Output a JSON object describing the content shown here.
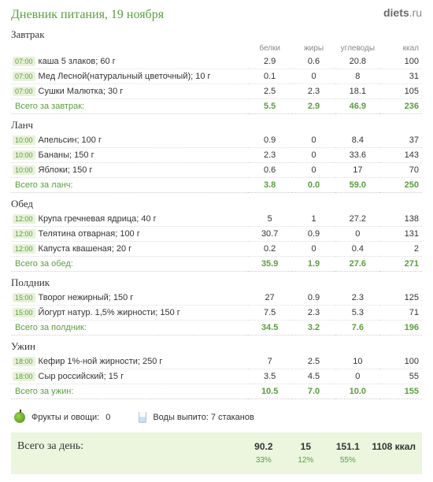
{
  "logo_bold": "diets",
  "logo_suffix": ".ru",
  "title": "Дневник питания, 19 ноября",
  "columns": {
    "protein": "белки",
    "fat": "жиры",
    "carbs": "углеводы",
    "kcal": "ккал"
  },
  "meals": [
    {
      "name": "Завтрак",
      "show_header": true,
      "total_label": "Всего за завтрак:",
      "items": [
        {
          "time": "07:00",
          "food": "каша 5 злаков; 60 г",
          "p": "2.9",
          "f": "0.6",
          "c": "20.8",
          "k": "100"
        },
        {
          "time": "07:00",
          "food": "Мед Лесной(натуральный цветочный); 10 г",
          "p": "0.1",
          "f": "0",
          "c": "8",
          "k": "31"
        },
        {
          "time": "07:00",
          "food": "Сушки Малютка; 30 г",
          "p": "2.5",
          "f": "2.3",
          "c": "18.1",
          "k": "105"
        }
      ],
      "total": {
        "p": "5.5",
        "f": "2.9",
        "c": "46.9",
        "k": "236"
      }
    },
    {
      "name": "Ланч",
      "show_header": false,
      "total_label": "Всего за ланч:",
      "items": [
        {
          "time": "10:00",
          "food": "Апельсин; 100 г",
          "p": "0.9",
          "f": "0",
          "c": "8.4",
          "k": "37"
        },
        {
          "time": "10:00",
          "food": "Бананы; 150 г",
          "p": "2.3",
          "f": "0",
          "c": "33.6",
          "k": "143"
        },
        {
          "time": "10:00",
          "food": "Яблоки; 150 г",
          "p": "0.6",
          "f": "0",
          "c": "17",
          "k": "70"
        }
      ],
      "total": {
        "p": "3.8",
        "f": "0.0",
        "c": "59.0",
        "k": "250"
      }
    },
    {
      "name": "Обед",
      "show_header": false,
      "total_label": "Всего за обед:",
      "items": [
        {
          "time": "12:00",
          "food": "Крупа гречневая ядрица; 40 г",
          "p": "5",
          "f": "1",
          "c": "27.2",
          "k": "138"
        },
        {
          "time": "12:00",
          "food": "Телятина отварная; 100 г",
          "p": "30.7",
          "f": "0.9",
          "c": "0",
          "k": "131"
        },
        {
          "time": "12:00",
          "food": "Капуста квашеная; 20 г",
          "p": "0.2",
          "f": "0",
          "c": "0.4",
          "k": "2"
        }
      ],
      "total": {
        "p": "35.9",
        "f": "1.9",
        "c": "27.6",
        "k": "271"
      }
    },
    {
      "name": "Полдник",
      "show_header": false,
      "total_label": "Всего за полдник:",
      "items": [
        {
          "time": "15:00",
          "food": "Творог нежирный; 150 г",
          "p": "27",
          "f": "0.9",
          "c": "2.3",
          "k": "125"
        },
        {
          "time": "15:00",
          "food": "Йогурт натур. 1,5% жирности; 150 г",
          "p": "7.5",
          "f": "2.3",
          "c": "5.3",
          "k": "71"
        }
      ],
      "total": {
        "p": "34.5",
        "f": "3.2",
        "c": "7.6",
        "k": "196"
      }
    },
    {
      "name": "Ужин",
      "show_header": false,
      "total_label": "Всего за ужин:",
      "items": [
        {
          "time": "18:00",
          "food": "Кефир 1%-ной жирности; 250 г",
          "p": "7",
          "f": "2.5",
          "c": "10",
          "k": "100"
        },
        {
          "time": "18:00",
          "food": "Сыр российский; 15 г",
          "p": "3.5",
          "f": "4.5",
          "c": "0",
          "k": "55"
        }
      ],
      "total": {
        "p": "10.5",
        "f": "7.0",
        "c": "10.0",
        "k": "155"
      }
    }
  ],
  "summary": {
    "fruits_label": "Фрукты и овощи:",
    "fruits_value": "0",
    "water_label": "Воды выпито: 7 стаканов"
  },
  "day_total": {
    "label": "Всего за день:",
    "p": "90.2",
    "f": "15",
    "c": "151.1",
    "k": "1108 ккал",
    "p_pct": "33%",
    "f_pct": "12%",
    "c_pct": "55%"
  },
  "colors": {
    "accent": "#5a9e3f",
    "bg_total": "#ecf5de",
    "time_bg": "#e8f2d9",
    "dotted": "#ddd"
  }
}
